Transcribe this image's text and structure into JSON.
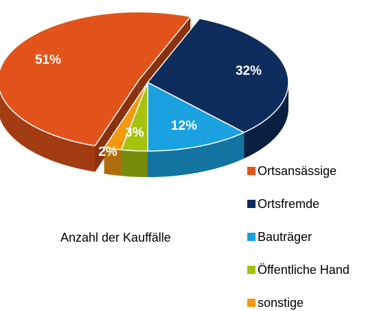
{
  "chart_data": {
    "type": "pie",
    "categories": [
      "Ortsansässige",
      "Ortsfremde",
      "Bauträger",
      "Öffentliche Hand",
      "sonstige"
    ],
    "values": [
      51,
      32,
      12,
      3,
      2
    ],
    "value_labels": [
      "51%",
      "32%",
      "12%",
      "3%",
      "2%"
    ],
    "colors": [
      "#e2541b",
      "#0e2c5c",
      "#1aa1e0",
      "#a5c20e",
      "#f2990f"
    ],
    "annotation": "Anzahl der Kauffälle",
    "legend": "right"
  }
}
